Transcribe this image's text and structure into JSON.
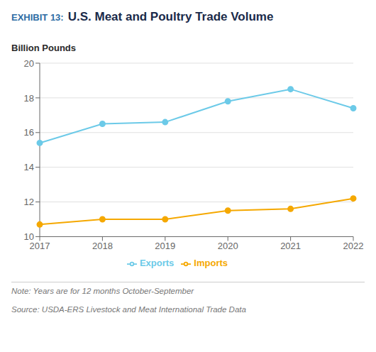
{
  "chart_data": {
    "type": "line",
    "title": "U.S. Meat and Poultry Trade Volume",
    "y_label": "Billion Pounds",
    "annotations": [
      "EXHIBIT 13:",
      "Note: Years are for 12 months October-September",
      "Source: USDA-ERS Livestock and Meat International Trade Data"
    ],
    "categories": [
      "2017",
      "2018",
      "2019",
      "2020",
      "2021",
      "2022"
    ],
    "series": [
      {
        "name": "Imports",
        "color": "#F5A800",
        "marker": "circle",
        "values": [
          10.7,
          11.0,
          11.0,
          11.5,
          11.6,
          12.2
        ]
      },
      {
        "name": "Exports",
        "color": "#6CCAE8",
        "marker": "circle",
        "values": [
          15.4,
          16.5,
          16.6,
          17.8,
          18.5,
          17.4
        ]
      }
    ],
    "ylim": [
      10,
      20
    ],
    "yticks": [
      10,
      12,
      14,
      16,
      18,
      20
    ],
    "grid": true,
    "legend": "bottom"
  }
}
